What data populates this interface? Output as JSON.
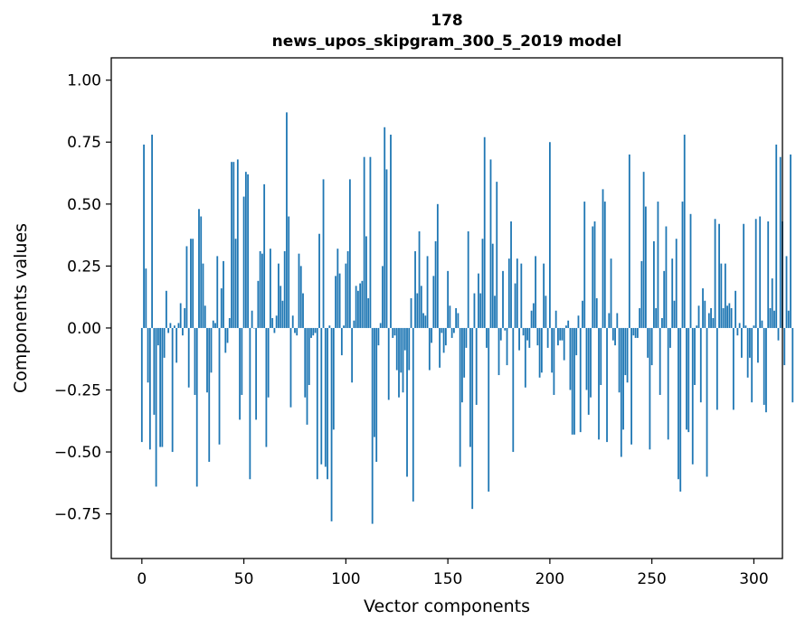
{
  "chart_data": {
    "type": "bar",
    "title_line1": "178",
    "title_line2": "news_upos_skipgram_300_5_2019 model",
    "xlabel": "Vector components",
    "ylabel": "Components values",
    "xlim": [
      -15,
      314
    ],
    "ylim": [
      -0.93,
      1.09
    ],
    "x_ticks": [
      0,
      50,
      100,
      150,
      200,
      250,
      300
    ],
    "x_tick_labels": [
      "0",
      "50",
      "100",
      "150",
      "200",
      "250",
      "300"
    ],
    "y_ticks": [
      -0.75,
      -0.5,
      -0.25,
      0.0,
      0.25,
      0.5,
      0.75,
      1.0
    ],
    "y_tick_labels": [
      "−0.75",
      "−0.50",
      "−0.25",
      "0.00",
      "0.25",
      "0.50",
      "0.75",
      "1.00"
    ],
    "bar_color": "#1f77b4",
    "values": [
      -0.46,
      0.74,
      0.24,
      -0.22,
      -0.49,
      0.78,
      -0.35,
      -0.64,
      -0.07,
      -0.48,
      -0.48,
      -0.12,
      0.15,
      -0.02,
      0.02,
      -0.5,
      0.01,
      -0.14,
      0.02,
      0.1,
      -0.03,
      0.08,
      0.33,
      -0.24,
      0.36,
      0.36,
      -0.27,
      -0.64,
      0.48,
      0.45,
      0.26,
      0.09,
      -0.26,
      -0.54,
      -0.18,
      0.03,
      0.02,
      0.29,
      -0.47,
      0.16,
      0.27,
      -0.1,
      -0.06,
      0.04,
      0.67,
      0.67,
      0.36,
      0.68,
      -0.37,
      -0.27,
      0.53,
      0.63,
      0.62,
      -0.61,
      0.07,
      0.0,
      -0.37,
      0.19,
      0.31,
      0.3,
      0.58,
      -0.48,
      -0.28,
      0.32,
      0.04,
      -0.02,
      0.05,
      0.26,
      0.17,
      0.11,
      0.31,
      0.87,
      0.45,
      -0.32,
      0.05,
      -0.02,
      -0.03,
      0.3,
      0.25,
      0.14,
      -0.28,
      -0.39,
      -0.23,
      -0.04,
      -0.03,
      -0.02,
      -0.61,
      0.38,
      -0.55,
      0.6,
      -0.56,
      -0.61,
      0.01,
      -0.78,
      -0.41,
      0.21,
      0.32,
      0.22,
      -0.11,
      0.01,
      0.26,
      0.31,
      0.6,
      -0.22,
      0.03,
      0.17,
      0.15,
      0.18,
      0.19,
      0.69,
      0.37,
      0.12,
      0.69,
      -0.79,
      -0.44,
      -0.54,
      -0.07,
      0.02,
      0.25,
      0.81,
      0.64,
      -0.29,
      0.78,
      -0.04,
      -0.03,
      -0.17,
      -0.28,
      -0.18,
      -0.26,
      -0.09,
      -0.6,
      -0.17,
      0.12,
      -0.7,
      0.31,
      0.14,
      0.39,
      0.17,
      0.06,
      0.05,
      0.29,
      -0.17,
      -0.06,
      0.21,
      0.35,
      0.5,
      -0.16,
      -0.02,
      -0.1,
      -0.07,
      0.23,
      0.09,
      -0.04,
      -0.02,
      0.08,
      0.06,
      -0.56,
      -0.3,
      -0.2,
      -0.08,
      0.39,
      -0.48,
      -0.73,
      0.14,
      -0.31,
      0.22,
      0.14,
      0.36,
      0.77,
      -0.08,
      -0.66,
      0.68,
      0.34,
      0.13,
      0.59,
      -0.19,
      -0.05,
      0.23,
      -0.01,
      -0.15,
      0.28,
      0.43,
      -0.5,
      0.18,
      0.28,
      -0.09,
      0.26,
      -0.03,
      -0.24,
      -0.05,
      -0.08,
      0.07,
      0.1,
      0.29,
      -0.07,
      -0.2,
      -0.18,
      0.26,
      0.13,
      -0.08,
      0.75,
      -0.18,
      -0.27,
      0.07,
      -0.07,
      -0.05,
      -0.05,
      -0.13,
      0.01,
      0.03,
      -0.25,
      -0.43,
      -0.43,
      -0.11,
      0.05,
      -0.42,
      0.11,
      0.51,
      -0.25,
      -0.35,
      -0.28,
      0.41,
      0.43,
      0.12,
      -0.45,
      -0.23,
      0.56,
      0.51,
      -0.46,
      0.06,
      0.28,
      -0.05,
      -0.07,
      0.06,
      -0.26,
      -0.52,
      -0.41,
      -0.19,
      -0.22,
      0.7,
      -0.47,
      -0.03,
      -0.04,
      -0.04,
      0.08,
      0.27,
      0.63,
      0.49,
      -0.12,
      -0.49,
      -0.15,
      0.35,
      0.08,
      0.51,
      -0.27,
      0.04,
      0.23,
      0.41,
      -0.45,
      -0.08,
      0.28,
      0.11,
      0.36,
      -0.61,
      -0.66,
      0.51,
      0.78,
      -0.41,
      -0.42,
      0.46,
      -0.55,
      -0.23,
      0.01,
      0.09,
      -0.3,
      0.16,
      0.11,
      -0.6,
      0.06,
      0.08,
      0.04,
      0.44,
      -0.33,
      0.42,
      0.26,
      0.08,
      0.26,
      0.09,
      0.1,
      0.08,
      -0.33,
      0.15,
      -0.03,
      0.02,
      -0.12,
      0.42,
      0.01,
      -0.2,
      -0.12,
      -0.3,
      0.01,
      0.44,
      -0.14,
      0.45,
      0.03,
      -0.31,
      -0.34,
      0.43,
      0.08,
      0.2,
      0.07,
      0.74,
      -0.05,
      0.69,
      0.43,
      -0.15,
      0.29,
      0.07,
      0.7,
      -0.3
    ]
  }
}
